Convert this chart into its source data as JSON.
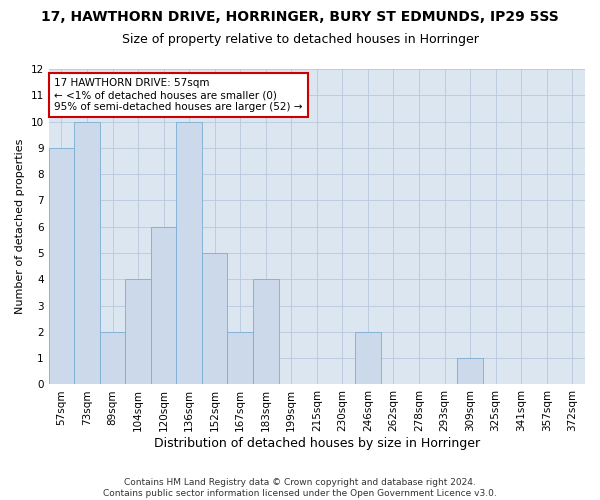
{
  "title_line1": "17, HAWTHORN DRIVE, HORRINGER, BURY ST EDMUNDS, IP29 5SS",
  "title_line2": "Size of property relative to detached houses in Horringer",
  "xlabel": "Distribution of detached houses by size in Horringer",
  "ylabel": "Number of detached properties",
  "categories": [
    "57sqm",
    "73sqm",
    "89sqm",
    "104sqm",
    "120sqm",
    "136sqm",
    "152sqm",
    "167sqm",
    "183sqm",
    "199sqm",
    "215sqm",
    "230sqm",
    "246sqm",
    "262sqm",
    "278sqm",
    "293sqm",
    "309sqm",
    "325sqm",
    "341sqm",
    "357sqm",
    "372sqm"
  ],
  "values": [
    9,
    10,
    2,
    4,
    6,
    10,
    5,
    2,
    4,
    0,
    0,
    0,
    2,
    0,
    0,
    0,
    1,
    0,
    0,
    0,
    0
  ],
  "bar_color": "#ccd9ea",
  "bar_edge_color": "#7aadd4",
  "annotation_text": "17 HAWTHORN DRIVE: 57sqm\n← <1% of detached houses are smaller (0)\n95% of semi-detached houses are larger (52) →",
  "annotation_box_facecolor": "#ffffff",
  "annotation_box_edgecolor": "#cc0000",
  "ylim": [
    0,
    12
  ],
  "yticks": [
    0,
    1,
    2,
    3,
    4,
    5,
    6,
    7,
    8,
    9,
    10,
    11,
    12
  ],
  "grid_color": "#b8c8dc",
  "bg_color": "#dce6f0",
  "footnote": "Contains HM Land Registry data © Crown copyright and database right 2024.\nContains public sector information licensed under the Open Government Licence v3.0.",
  "title1_fontsize": 10,
  "title2_fontsize": 9,
  "xlabel_fontsize": 9,
  "ylabel_fontsize": 8,
  "tick_fontsize": 7.5,
  "annot_fontsize": 7.5,
  "footnote_fontsize": 6.5
}
